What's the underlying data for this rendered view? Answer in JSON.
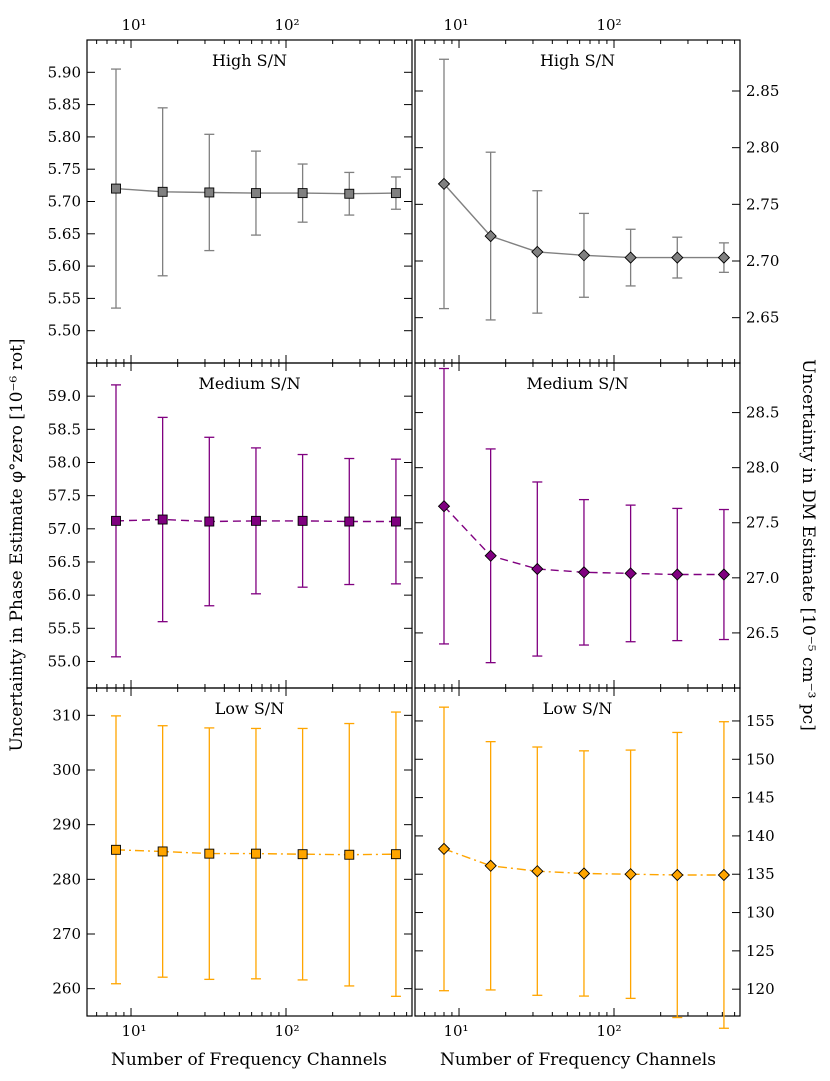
{
  "figure": {
    "xlabel": "Number of Frequency Channels",
    "left_ylabel": "Uncertainty in Phase Estimate φ°zero [10⁻⁶ rot]",
    "right_ylabel": "Uncertainty in DM Estimate [10⁻⁵ cm⁻³ pc]",
    "x_tick_labels": [
      "10¹",
      "10²"
    ]
  },
  "chart_data": [
    {
      "type": "scatter",
      "panel": "left-top",
      "title": "High S/N",
      "x_scale": "log",
      "xlim": [
        5.2,
        650
      ],
      "ylim": [
        5.45,
        5.95
      ],
      "yticks": [
        5.5,
        5.55,
        5.6,
        5.65,
        5.7,
        5.75,
        5.8,
        5.85,
        5.9
      ],
      "ytick_decimals": 2,
      "color": "#808080",
      "linestyle": "solid",
      "marker": "square",
      "series": [
        {
          "x": [
            8,
            16,
            32,
            64,
            128,
            256,
            512
          ],
          "y": [
            5.72,
            5.715,
            5.714,
            5.713,
            5.713,
            5.712,
            5.713
          ],
          "err": [
            0.185,
            0.13,
            0.09,
            0.065,
            0.045,
            0.033,
            0.025
          ]
        }
      ]
    },
    {
      "type": "scatter",
      "panel": "right-top",
      "title": "High S/N",
      "x_scale": "log",
      "xlim": [
        5.2,
        650
      ],
      "ylim": [
        2.61,
        2.895
      ],
      "yticks": [
        2.65,
        2.7,
        2.75,
        2.8,
        2.85
      ],
      "ytick_decimals": 2,
      "color": "#808080",
      "linestyle": "solid",
      "marker": "diamond",
      "series": [
        {
          "x": [
            8,
            16,
            32,
            64,
            128,
            256,
            512
          ],
          "y": [
            2.768,
            2.722,
            2.708,
            2.705,
            2.703,
            2.703,
            2.703
          ],
          "err": [
            0.11,
            0.074,
            0.054,
            0.037,
            0.025,
            0.018,
            0.013
          ]
        }
      ]
    },
    {
      "type": "scatter",
      "panel": "left-middle",
      "title": "Medium S/N",
      "x_scale": "log",
      "xlim": [
        5.2,
        650
      ],
      "ylim": [
        54.6,
        59.5
      ],
      "yticks": [
        55.0,
        55.5,
        56.0,
        56.5,
        57.0,
        57.5,
        58.0,
        58.5,
        59.0
      ],
      "ytick_decimals": 1,
      "color": "#800080",
      "linestyle": "dashed",
      "marker": "square",
      "series": [
        {
          "x": [
            8,
            16,
            32,
            64,
            128,
            256,
            512
          ],
          "y": [
            57.12,
            57.14,
            57.11,
            57.12,
            57.12,
            57.11,
            57.11
          ],
          "err": [
            2.05,
            1.54,
            1.27,
            1.1,
            1.0,
            0.95,
            0.94
          ]
        }
      ]
    },
    {
      "type": "scatter",
      "panel": "right-middle",
      "title": "Medium S/N",
      "x_scale": "log",
      "xlim": [
        5.2,
        650
      ],
      "ylim": [
        26.0,
        28.95
      ],
      "yticks": [
        26.5,
        27.0,
        27.5,
        28.0,
        28.5
      ],
      "ytick_decimals": 1,
      "color": "#800080",
      "linestyle": "dashed",
      "marker": "diamond",
      "series": [
        {
          "x": [
            8,
            16,
            32,
            64,
            128,
            256,
            512
          ],
          "y": [
            27.65,
            27.2,
            27.08,
            27.05,
            27.04,
            27.03,
            27.03
          ],
          "err": [
            1.25,
            0.97,
            0.79,
            0.66,
            0.62,
            0.6,
            0.59
          ]
        }
      ]
    },
    {
      "type": "scatter",
      "panel": "left-bottom",
      "title": "Low S/N",
      "x_scale": "log",
      "xlim": [
        5.2,
        650
      ],
      "ylim": [
        255,
        315
      ],
      "yticks": [
        260,
        270,
        280,
        290,
        300,
        310
      ],
      "ytick_decimals": 0,
      "color": "#FFA500",
      "linestyle": "dashdot",
      "marker": "square",
      "series": [
        {
          "x": [
            8,
            16,
            32,
            64,
            128,
            256,
            512
          ],
          "y": [
            285.4,
            285.1,
            284.7,
            284.7,
            284.6,
            284.5,
            284.6
          ],
          "err": [
            24.5,
            23.0,
            23.0,
            22.9,
            23.0,
            24.0,
            26.0
          ]
        }
      ]
    },
    {
      "type": "scatter",
      "panel": "right-bottom",
      "title": "Low S/N",
      "x_scale": "log",
      "xlim": [
        5.2,
        650
      ],
      "ylim": [
        116.5,
        159.3
      ],
      "yticks": [
        120,
        125,
        130,
        135,
        140,
        145,
        150,
        155
      ],
      "ytick_decimals": 0,
      "color": "#FFA500",
      "linestyle": "dashdot",
      "marker": "diamond",
      "series": [
        {
          "x": [
            8,
            16,
            32,
            64,
            128,
            256,
            512
          ],
          "y": [
            138.3,
            136.1,
            135.4,
            135.1,
            135.0,
            134.9,
            134.9
          ],
          "err": [
            18.5,
            16.2,
            16.2,
            16.0,
            16.2,
            18.6,
            20.0
          ]
        }
      ]
    }
  ]
}
